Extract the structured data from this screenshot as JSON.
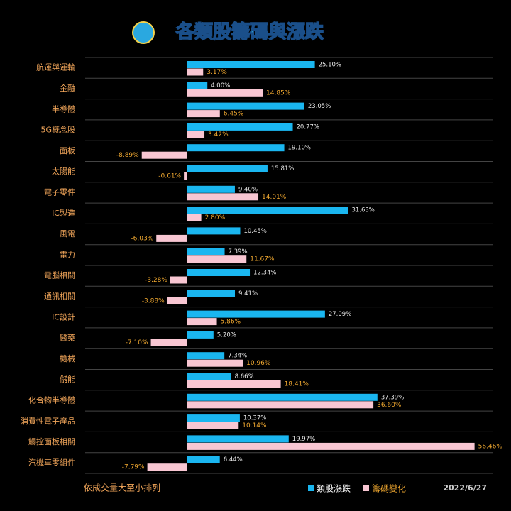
{
  "chart_data": {
    "type": "bar",
    "orientation": "horizontal",
    "title": "各類股籌碼與漲跌",
    "note": "依成交量大至小排列",
    "date": "2022/6/27",
    "categories": [
      "航運與運輸",
      "金融",
      "半導體",
      "5G概念股",
      "面板",
      "太陽能",
      "電子零件",
      "IC製造",
      "風電",
      "電力",
      "電腦相關",
      "通訊相關",
      "IC設計",
      "醫藥",
      "機械",
      "儲能",
      "化合物半導體",
      "消費性電子產品",
      "觸控面板相關",
      "汽機車零組件"
    ],
    "series": [
      {
        "name": "類股漲跌",
        "color": "#1ab6f0",
        "values": [
          25.1,
          4.0,
          23.05,
          20.77,
          19.1,
          15.81,
          9.4,
          31.63,
          10.45,
          7.39,
          12.34,
          9.41,
          27.09,
          5.2,
          7.34,
          8.66,
          37.39,
          10.37,
          19.97,
          6.44
        ],
        "value_labels": [
          "25.10%",
          "4.00%",
          "23.05%",
          "20.77%",
          "19.10%",
          "15.81%",
          "9.40%",
          "31.63%",
          "10.45%",
          "7.39%",
          "12.34%",
          "9.41%",
          "27.09%",
          "5.20%",
          "7.34%",
          "8.66%",
          "37.39%",
          "10.37%",
          "19.97%",
          "6.44%"
        ]
      },
      {
        "name": "籌碼變化",
        "color": "#f8c6d2",
        "values": [
          3.17,
          14.85,
          6.45,
          3.42,
          -8.89,
          -0.61,
          14.01,
          2.8,
          -6.03,
          11.67,
          -3.28,
          -3.88,
          5.86,
          -7.1,
          10.96,
          18.41,
          36.6,
          10.14,
          56.46,
          -7.79
        ],
        "value_labels": [
          "3.17%",
          "14.85%",
          "6.45%",
          "3.42%",
          "-8.89%",
          "-0.61%",
          "14.01%",
          "2.80%",
          "-6.03%",
          "11.67%",
          "-3.28%",
          "-3.88%",
          "5.86%",
          "-7.10%",
          "10.96%",
          "18.41%",
          "36.60%",
          "10.14%",
          "56.46%",
          "-7.79%"
        ]
      }
    ],
    "xlim": [
      -20,
      60
    ]
  }
}
